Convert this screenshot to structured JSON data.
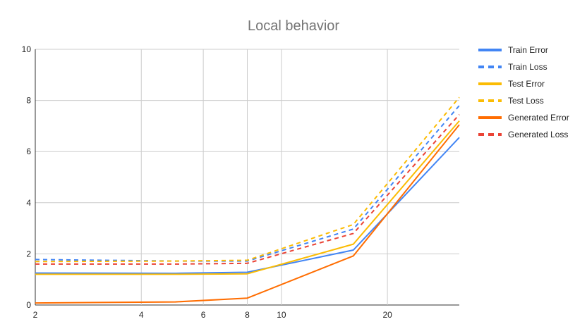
{
  "chart_data": {
    "type": "line",
    "title": "Local behavior",
    "xlabel": "",
    "ylabel": "",
    "x_scale": "log",
    "xlim": [
      2,
      32
    ],
    "ylim": [
      0,
      10
    ],
    "x_ticks": [
      2,
      4,
      6,
      8,
      10,
      20
    ],
    "y_ticks": [
      0,
      2,
      4,
      6,
      8,
      10
    ],
    "grid": true,
    "legend_position": "right",
    "x": [
      2,
      5,
      8,
      16,
      32
    ],
    "series": [
      {
        "name": "Train Error",
        "color": "#4285f4",
        "dash": false,
        "values": [
          1.25,
          1.24,
          1.28,
          2.15,
          6.55
        ]
      },
      {
        "name": "Train Loss",
        "color": "#4285f4",
        "dash": true,
        "values": [
          1.78,
          1.72,
          1.72,
          2.97,
          7.8
        ]
      },
      {
        "name": "Test Error",
        "color": "#fbbc04",
        "dash": false,
        "values": [
          1.2,
          1.2,
          1.22,
          2.38,
          7.2
        ]
      },
      {
        "name": "Test Loss",
        "color": "#fbbc04",
        "dash": true,
        "values": [
          1.7,
          1.72,
          1.75,
          3.15,
          8.12
        ]
      },
      {
        "name": "Generated Error",
        "color": "#ff6d01",
        "dash": false,
        "values": [
          0.08,
          0.12,
          0.27,
          1.92,
          7.05
        ]
      },
      {
        "name": "Generated Loss",
        "color": "#ea4335",
        "dash": true,
        "values": [
          1.6,
          1.6,
          1.63,
          2.8,
          7.45
        ]
      }
    ]
  }
}
